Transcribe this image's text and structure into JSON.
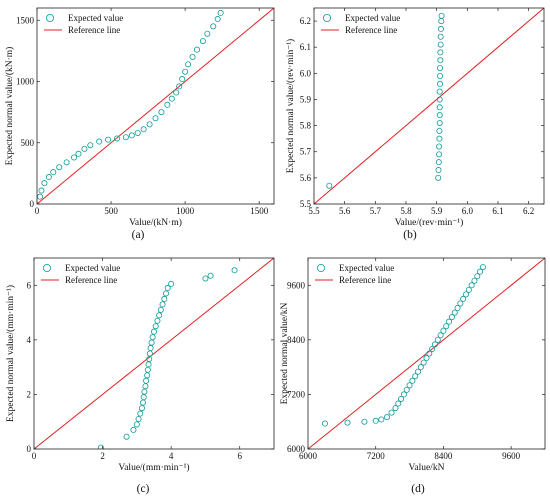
{
  "colors": {
    "marker": "#0e9c98",
    "reference": "#e02020",
    "axis": "#222222"
  },
  "legend": {
    "expected": "Expected value",
    "reference": "Reference line"
  },
  "chart_data": [
    {
      "id": "a",
      "type": "scatter",
      "panel_label": "(a)",
      "xlabel": "Value/(kN·m)",
      "ylabel": "Expected normal value/(kN·m)",
      "xlim": [
        0,
        1600
      ],
      "ylim": [
        0,
        1600
      ],
      "xticks": [
        "0",
        "500",
        "1000",
        "1500"
      ],
      "yticks": [
        "0",
        "500",
        "1000",
        "1500"
      ],
      "xtick_values": [
        0,
        500,
        1000,
        1500
      ],
      "ytick_values": [
        0,
        500,
        1000,
        1500
      ],
      "legend_position": "top-left",
      "reference_line": [
        [
          0,
          0
        ],
        [
          1600,
          1600
        ]
      ],
      "series": [
        {
          "values": [
            [
              20,
              60
            ],
            [
              30,
              110
            ],
            [
              50,
              170
            ],
            [
              80,
              220
            ],
            [
              110,
              260
            ],
            [
              150,
              300
            ],
            [
              200,
              340
            ],
            [
              250,
              380
            ],
            [
              280,
              410
            ],
            [
              320,
              450
            ],
            [
              360,
              480
            ],
            [
              420,
              510
            ],
            [
              480,
              525
            ],
            [
              540,
              535
            ],
            [
              600,
              545
            ],
            [
              640,
              560
            ],
            [
              680,
              580
            ],
            [
              720,
              610
            ],
            [
              760,
              650
            ],
            [
              800,
              700
            ],
            [
              840,
              750
            ],
            [
              880,
              810
            ],
            [
              910,
              860
            ],
            [
              940,
              910
            ],
            [
              960,
              960
            ],
            [
              980,
              1020
            ],
            [
              1000,
              1080
            ],
            [
              1020,
              1140
            ],
            [
              1050,
              1200
            ],
            [
              1080,
              1260
            ],
            [
              1120,
              1330
            ],
            [
              1150,
              1390
            ],
            [
              1190,
              1450
            ],
            [
              1220,
              1510
            ],
            [
              1240,
              1560
            ]
          ]
        }
      ]
    },
    {
      "id": "b",
      "type": "scatter",
      "panel_label": "(b)",
      "xlabel": "Value/(rev·min⁻¹)",
      "ylabel": "Expected normal value/(rev·min⁻¹)",
      "xlim": [
        5.5,
        6.25
      ],
      "ylim": [
        5.5,
        6.25
      ],
      "xticks": [
        "5.5",
        "5.6",
        "5.7",
        "5.8",
        "5.9",
        "6.0",
        "6.1",
        "6.2"
      ],
      "yticks": [
        "5.5",
        "5.6",
        "5.7",
        "5.8",
        "5.9",
        "6.0",
        "6.1",
        "6.2"
      ],
      "xtick_values": [
        5.5,
        5.6,
        5.7,
        5.8,
        5.9,
        6.0,
        6.1,
        6.2
      ],
      "ytick_values": [
        5.5,
        5.6,
        5.7,
        5.8,
        5.9,
        6.0,
        6.1,
        6.2
      ],
      "legend_position": "top-left",
      "reference_line": [
        [
          5.5,
          5.5
        ],
        [
          6.25,
          6.25
        ]
      ],
      "series": [
        {
          "values": [
            [
              5.55,
              5.57
            ],
            [
              5.905,
              5.6
            ],
            [
              5.906,
              5.63
            ],
            [
              5.907,
              5.66
            ],
            [
              5.908,
              5.69
            ],
            [
              5.908,
              5.72
            ],
            [
              5.909,
              5.75
            ],
            [
              5.909,
              5.78
            ],
            [
              5.91,
              5.81
            ],
            [
              5.91,
              5.84
            ],
            [
              5.91,
              5.87
            ],
            [
              5.91,
              5.9
            ],
            [
              5.91,
              5.93
            ],
            [
              5.911,
              5.96
            ],
            [
              5.911,
              5.99
            ],
            [
              5.911,
              6.02
            ],
            [
              5.912,
              6.05
            ],
            [
              5.912,
              6.08
            ],
            [
              5.913,
              6.11
            ],
            [
              5.913,
              6.14
            ],
            [
              5.914,
              6.17
            ],
            [
              5.915,
              6.2
            ],
            [
              5.916,
              6.22
            ]
          ]
        }
      ]
    },
    {
      "id": "c",
      "type": "scatter",
      "panel_label": "(c)",
      "xlabel": "Value/(mm·min⁻¹)",
      "ylabel": "Expected normal value/(mm·min⁻¹)",
      "xlim": [
        0,
        7
      ],
      "ylim": [
        0,
        7
      ],
      "xticks": [
        "0",
        "2",
        "4",
        "6"
      ],
      "yticks": [
        "0",
        "2",
        "4",
        "6"
      ],
      "xtick_values": [
        0,
        2,
        4,
        6
      ],
      "ytick_values": [
        0,
        2,
        4,
        6
      ],
      "legend_position": "top-left",
      "reference_line": [
        [
          0,
          0
        ],
        [
          7,
          7
        ]
      ],
      "series": [
        {
          "values": [
            [
              1.95,
              0.05
            ],
            [
              2.7,
              0.45
            ],
            [
              2.9,
              0.7
            ],
            [
              3.0,
              0.9
            ],
            [
              3.05,
              1.1
            ],
            [
              3.1,
              1.3
            ],
            [
              3.15,
              1.5
            ],
            [
              3.18,
              1.7
            ],
            [
              3.2,
              1.9
            ],
            [
              3.22,
              2.1
            ],
            [
              3.25,
              2.3
            ],
            [
              3.27,
              2.5
            ],
            [
              3.3,
              2.7
            ],
            [
              3.32,
              2.9
            ],
            [
              3.34,
              3.1
            ],
            [
              3.36,
              3.3
            ],
            [
              3.38,
              3.5
            ],
            [
              3.4,
              3.7
            ],
            [
              3.43,
              3.9
            ],
            [
              3.46,
              4.1
            ],
            [
              3.5,
              4.3
            ],
            [
              3.55,
              4.5
            ],
            [
              3.6,
              4.7
            ],
            [
              3.65,
              4.9
            ],
            [
              3.7,
              5.1
            ],
            [
              3.75,
              5.3
            ],
            [
              3.8,
              5.5
            ],
            [
              3.85,
              5.7
            ],
            [
              3.9,
              5.9
            ],
            [
              4.0,
              6.05
            ],
            [
              5.0,
              6.25
            ],
            [
              5.15,
              6.35
            ],
            [
              5.85,
              6.55
            ]
          ]
        }
      ]
    },
    {
      "id": "d",
      "type": "scatter",
      "panel_label": "(d)",
      "xlabel": "Value/kN",
      "ylabel": "Expected normal value/kN",
      "xlim": [
        6000,
        10200
      ],
      "ylim": [
        6000,
        10200
      ],
      "xticks": [
        "6000",
        "7200",
        "8400",
        "9600"
      ],
      "yticks": [
        "6000",
        "7200",
        "8400",
        "9600"
      ],
      "xtick_values": [
        6000,
        7200,
        8400,
        9600
      ],
      "ytick_values": [
        6000,
        7200,
        8400,
        9600
      ],
      "legend_position": "top-left",
      "reference_line": [
        [
          6000,
          6000
        ],
        [
          10200,
          10200
        ]
      ],
      "series": [
        {
          "values": [
            [
              6300,
              6560
            ],
            [
              6700,
              6580
            ],
            [
              7000,
              6600
            ],
            [
              7200,
              6620
            ],
            [
              7300,
              6650
            ],
            [
              7400,
              6700
            ],
            [
              7480,
              6800
            ],
            [
              7550,
              6900
            ],
            [
              7600,
              7000
            ],
            [
              7650,
              7100
            ],
            [
              7700,
              7200
            ],
            [
              7750,
              7300
            ],
            [
              7800,
              7400
            ],
            [
              7850,
              7500
            ],
            [
              7900,
              7600
            ],
            [
              7950,
              7700
            ],
            [
              8000,
              7800
            ],
            [
              8050,
              7900
            ],
            [
              8100,
              8000
            ],
            [
              8150,
              8100
            ],
            [
              8200,
              8200
            ],
            [
              8250,
              8300
            ],
            [
              8300,
              8400
            ],
            [
              8350,
              8500
            ],
            [
              8400,
              8600
            ],
            [
              8450,
              8700
            ],
            [
              8500,
              8800
            ],
            [
              8550,
              8900
            ],
            [
              8600,
              9000
            ],
            [
              8650,
              9100
            ],
            [
              8700,
              9200
            ],
            [
              8750,
              9300
            ],
            [
              8800,
              9400
            ],
            [
              8850,
              9500
            ],
            [
              8900,
              9600
            ],
            [
              8950,
              9700
            ],
            [
              9000,
              9800
            ],
            [
              9050,
              9900
            ],
            [
              9100,
              10000
            ]
          ]
        }
      ]
    }
  ]
}
